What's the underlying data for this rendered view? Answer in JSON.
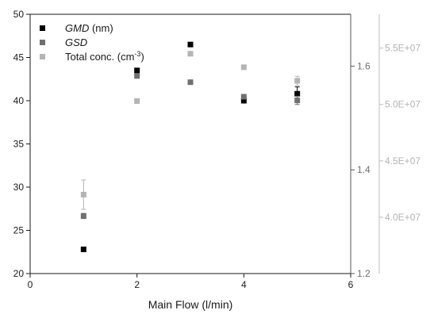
{
  "chart_data": {
    "type": "scatter",
    "xlabel": "Main Flow (l/min)",
    "x_ticks": [
      "0",
      "2",
      "4",
      "6"
    ],
    "xlim": [
      0,
      6
    ],
    "axes": {
      "left": {
        "ylim": [
          20,
          50
        ],
        "ticks": [
          "20",
          "25",
          "30",
          "35",
          "40",
          "45",
          "50"
        ]
      },
      "right1": {
        "ylim": [
          1.2,
          1.7
        ],
        "ticks": [
          "1.2",
          "1.4",
          "1.6"
        ]
      },
      "right2": {
        "ylim": [
          35000000,
          58000000
        ],
        "ticks": [
          "4.0E+07",
          "4.5E+07",
          "5.0E+07",
          "5.5E+07"
        ]
      }
    },
    "legend": {
      "placement": "top-left",
      "entries": [
        {
          "italic": "GMD",
          "rest": " (nm)",
          "sup": ""
        },
        {
          "italic": "GSD",
          "rest": "",
          "sup": ""
        },
        {
          "italic": "",
          "rest": "Total conc. (cm",
          "sup": "-3",
          "close": ")"
        }
      ]
    },
    "series": [
      {
        "name": "GMD (nm)",
        "axis": "left",
        "color": "#000000",
        "x": [
          1,
          2,
          3,
          4,
          5
        ],
        "y": [
          22.8,
          43.5,
          46.5,
          40.0,
          40.8
        ],
        "err": [
          0,
          0,
          0,
          0.2,
          0.8
        ]
      },
      {
        "name": "GSD",
        "axis": "right1",
        "color": "#707070",
        "x": [
          1,
          2,
          3,
          4,
          5
        ],
        "y": [
          1.311,
          1.581,
          1.569,
          1.541,
          1.534
        ],
        "err": [
          0.005,
          0,
          0,
          0,
          0.008
        ]
      },
      {
        "name": "Total conc. (cm-3)",
        "axis": "right2",
        "color": "#b4b4b4",
        "x": [
          1,
          2,
          3,
          4,
          5
        ],
        "y": [
          42000000,
          50300000,
          54500000,
          53300000,
          52100000
        ],
        "err": [
          1300000,
          0,
          0,
          0,
          400000
        ]
      }
    ]
  }
}
